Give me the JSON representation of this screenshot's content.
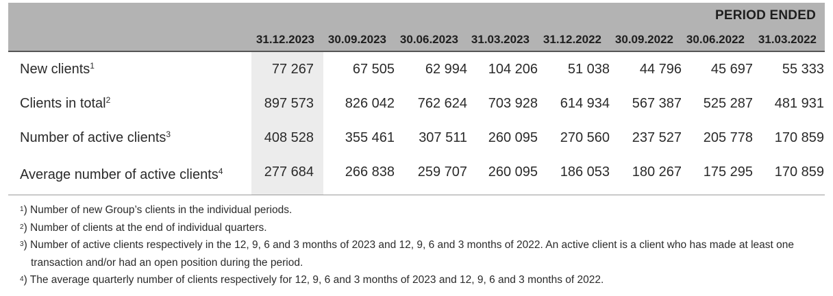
{
  "header": {
    "period_ended": "PERIOD ENDED",
    "dates": [
      "31.12.2023",
      "30.09.2023",
      "30.06.2023",
      "31.03.2023",
      "31.12.2022",
      "30.09.2022",
      "30.06.2022",
      "31.03.2022"
    ]
  },
  "rows": [
    {
      "label": "New clients",
      "note": "1",
      "values": [
        "77 267",
        "67 505",
        "62 994",
        "104 206",
        "51 038",
        "44 796",
        "45 697",
        "55 333"
      ]
    },
    {
      "label": "Clients in total",
      "note": "2",
      "values": [
        "897 573",
        "826 042",
        "762 624",
        "703 928",
        "614 934",
        "567 387",
        "525 287",
        "481 931"
      ]
    },
    {
      "label": "Number of active clients",
      "note": "3",
      "values": [
        "408 528",
        "355 461",
        "307 511",
        "260 095",
        "270 560",
        "237 527",
        "205 778",
        "170 859"
      ]
    },
    {
      "label": "Average number of active clients",
      "note": "4",
      "values": [
        "277 684",
        "266 838",
        "259 707",
        "260 095",
        "186 053",
        "180 267",
        "175 295",
        "170 859"
      ]
    }
  ],
  "footnotes": [
    {
      "mark": "1",
      "text": ") Number of new Group’s clients in the individual periods."
    },
    {
      "mark": "2",
      "text": ") Number of clients at the end of individual quarters."
    },
    {
      "mark": "3",
      "text": ") Number of active clients respectively in the 12, 9, 6 and 3 months of 2023 and 12, 9, 6 and 3 months of 2022. An active client is a client who has made at least one transaction and/or had an open position during the period."
    },
    {
      "mark": "4",
      "text": ") The average quarterly number of clients respectively for 12, 9, 6 and 3 months of 2023 and 12, 9, 6 and 3 months of 2022."
    }
  ]
}
